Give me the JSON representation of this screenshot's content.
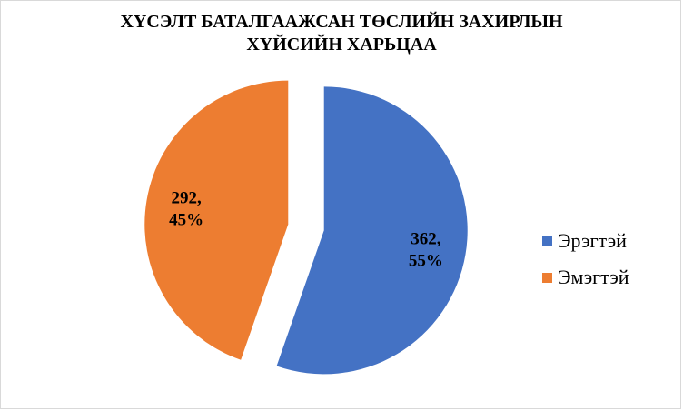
{
  "chart_data": {
    "type": "pie",
    "title_lines": [
      "ХҮСЭЛТ БАТАЛГААЖСАН ТӨСЛИЙН ЗАХИРЛЫН",
      "ХҮЙСИЙН ХАРЬЦАА"
    ],
    "categories": [
      "Эрэгтэй",
      "Эмэгтэй"
    ],
    "values": [
      362,
      292
    ],
    "percent_labels": [
      "55%",
      "45%"
    ],
    "value_labels": [
      "362,",
      "292,"
    ],
    "colors": [
      "#4472c4",
      "#ed7d31"
    ],
    "exploded": true,
    "legend_position": "right"
  }
}
